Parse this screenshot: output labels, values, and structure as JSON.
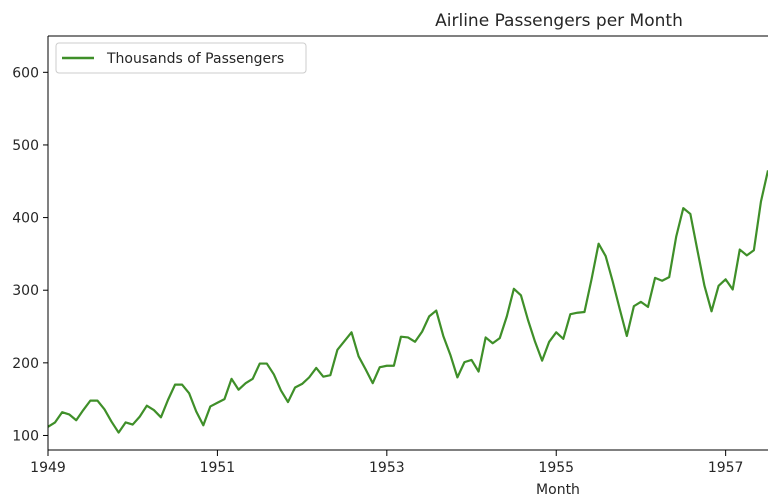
{
  "chart_data": {
    "type": "line",
    "title": "Airline Passengers per Month",
    "xlabel": "Month",
    "ylabel": "",
    "x_tick_labels": [
      "1949",
      "1951",
      "1953",
      "1955",
      "1957"
    ],
    "y_tick_labels": [
      "100",
      "200",
      "300",
      "400",
      "500",
      "600"
    ],
    "xlim": [
      "1949-01",
      "1957-07"
    ],
    "ylim": [
      80,
      650
    ],
    "grid": false,
    "legend_position": "upper-left",
    "series": [
      {
        "name": "Thousands of Passengers",
        "color": "#3f8f29",
        "x": [
          "1949-01",
          "1949-02",
          "1949-03",
          "1949-04",
          "1949-05",
          "1949-06",
          "1949-07",
          "1949-08",
          "1949-09",
          "1949-10",
          "1949-11",
          "1949-12",
          "1950-01",
          "1950-02",
          "1950-03",
          "1950-04",
          "1950-05",
          "1950-06",
          "1950-07",
          "1950-08",
          "1950-09",
          "1950-10",
          "1950-11",
          "1950-12",
          "1951-01",
          "1951-02",
          "1951-03",
          "1951-04",
          "1951-05",
          "1951-06",
          "1951-07",
          "1951-08",
          "1951-09",
          "1951-10",
          "1951-11",
          "1951-12",
          "1952-01",
          "1952-02",
          "1952-03",
          "1952-04",
          "1952-05",
          "1952-06",
          "1952-07",
          "1952-08",
          "1952-09",
          "1952-10",
          "1952-11",
          "1952-12",
          "1953-01",
          "1953-02",
          "1953-03",
          "1953-04",
          "1953-05",
          "1953-06",
          "1953-07",
          "1953-08",
          "1953-09",
          "1953-10",
          "1953-11",
          "1953-12",
          "1954-01",
          "1954-02",
          "1954-03",
          "1954-04",
          "1954-05",
          "1954-06",
          "1954-07",
          "1954-08",
          "1954-09",
          "1954-10",
          "1954-11",
          "1954-12",
          "1955-01",
          "1955-02",
          "1955-03",
          "1955-04",
          "1955-05",
          "1955-06",
          "1955-07",
          "1955-08",
          "1955-09",
          "1955-10",
          "1955-11",
          "1955-12",
          "1956-01",
          "1956-02",
          "1956-03",
          "1956-04",
          "1956-05",
          "1956-06",
          "1956-07",
          "1956-08",
          "1956-09",
          "1956-10",
          "1956-11",
          "1956-12",
          "1957-01",
          "1957-02",
          "1957-03",
          "1957-04",
          "1957-05",
          "1957-06",
          "1957-07"
        ],
        "values": [
          112,
          118,
          132,
          129,
          121,
          135,
          148,
          148,
          136,
          119,
          104,
          118,
          115,
          126,
          141,
          135,
          125,
          149,
          170,
          170,
          158,
          133,
          114,
          140,
          145,
          150,
          178,
          163,
          172,
          178,
          199,
          199,
          184,
          162,
          146,
          166,
          171,
          180,
          193,
          181,
          183,
          218,
          230,
          242,
          209,
          191,
          172,
          194,
          196,
          196,
          236,
          235,
          229,
          243,
          264,
          272,
          237,
          211,
          180,
          201,
          204,
          188,
          235,
          227,
          234,
          264,
          302,
          293,
          259,
          229,
          203,
          229,
          242,
          233,
          267,
          269,
          270,
          315,
          364,
          347,
          312,
          274,
          237,
          278,
          284,
          277,
          317,
          313,
          318,
          374,
          413,
          405,
          355,
          306,
          271,
          306,
          315,
          301,
          356,
          348,
          355,
          422,
          465
        ]
      }
    ]
  }
}
